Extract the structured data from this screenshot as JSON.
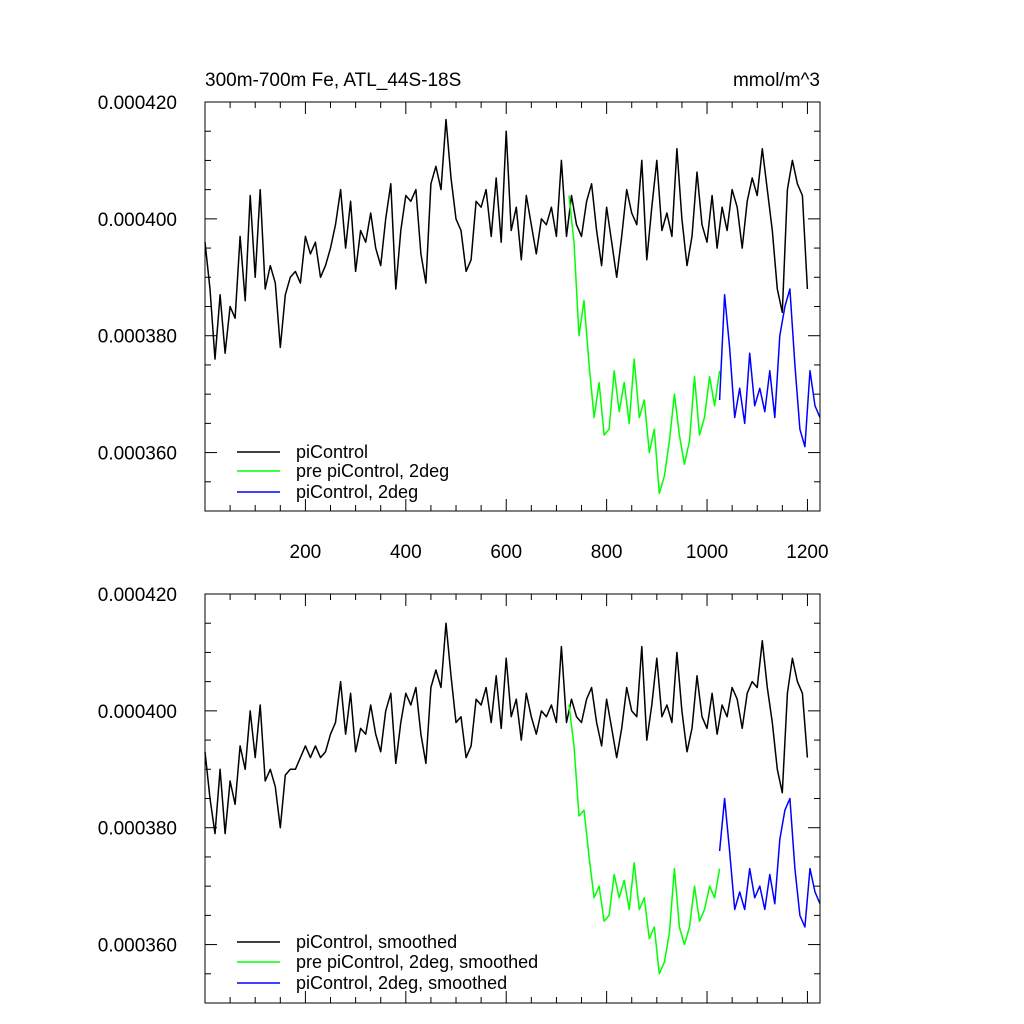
{
  "chart_data": [
    {
      "type": "line",
      "title": "300m-700m Fe, ATL_44S-18S",
      "units": "mmol/m^3",
      "xlabel": "",
      "ylabel": "",
      "xlim": [
        0,
        1225
      ],
      "ylim": [
        0.00035,
        0.00042
      ],
      "x_ticks": [
        200,
        400,
        600,
        800,
        1000,
        1200
      ],
      "x_tick_labels": [
        "200",
        "400",
        "600",
        "800",
        "1000",
        "1200"
      ],
      "y_ticks": [
        0.00036,
        0.00038,
        0.0004,
        0.00042
      ],
      "y_tick_labels": [
        "0.000360",
        "0.000380",
        "0.000400",
        "0.000420"
      ],
      "legend_position": "bottom-left",
      "series": [
        {
          "name": "piControl",
          "color": "#000000",
          "x": [
            0,
            10,
            20,
            30,
            40,
            50,
            60,
            70,
            80,
            90,
            100,
            110,
            120,
            130,
            140,
            150,
            160,
            170,
            180,
            190,
            200,
            210,
            220,
            230,
            240,
            250,
            260,
            270,
            280,
            290,
            300,
            310,
            320,
            330,
            340,
            350,
            360,
            370,
            380,
            390,
            400,
            410,
            420,
            430,
            440,
            450,
            460,
            470,
            480,
            490,
            500,
            510,
            520,
            530,
            540,
            550,
            560,
            570,
            580,
            590,
            600,
            610,
            620,
            630,
            640,
            650,
            660,
            670,
            680,
            690,
            700,
            710,
            720,
            730,
            740,
            750,
            760,
            770,
            780,
            790,
            800,
            810,
            820,
            830,
            840,
            850,
            860,
            870,
            880,
            890,
            900,
            910,
            920,
            930,
            940,
            950,
            960,
            970,
            980,
            990,
            1000,
            1010,
            1020,
            1030,
            1040,
            1050,
            1060,
            1070,
            1080,
            1090,
            1100,
            1110,
            1120,
            1130,
            1140,
            1150,
            1160,
            1170,
            1180,
            1190,
            1200
          ],
          "y": [
            0.000396,
            0.000388,
            0.000376,
            0.000387,
            0.000377,
            0.000385,
            0.000383,
            0.000397,
            0.000386,
            0.000404,
            0.00039,
            0.000405,
            0.000388,
            0.000392,
            0.000389,
            0.000378,
            0.000387,
            0.00039,
            0.000391,
            0.000389,
            0.000397,
            0.000394,
            0.000396,
            0.00039,
            0.000392,
            0.000395,
            0.000399,
            0.000405,
            0.000395,
            0.000403,
            0.000391,
            0.000398,
            0.000396,
            0.000401,
            0.000395,
            0.000392,
            0.0004,
            0.000406,
            0.000388,
            0.000398,
            0.000404,
            0.000403,
            0.000405,
            0.000394,
            0.000389,
            0.000406,
            0.000409,
            0.000405,
            0.000417,
            0.000407,
            0.0004,
            0.000398,
            0.000391,
            0.000393,
            0.000403,
            0.000402,
            0.000405,
            0.000397,
            0.000407,
            0.000396,
            0.000415,
            0.000398,
            0.000402,
            0.000393,
            0.000404,
            0.000399,
            0.000394,
            0.0004,
            0.000399,
            0.000402,
            0.000397,
            0.00041,
            0.000397,
            0.000404,
            0.000399,
            0.000397,
            0.000403,
            0.000406,
            0.000398,
            0.000392,
            0.000402,
            0.000396,
            0.00039,
            0.000397,
            0.000405,
            0.000401,
            0.000399,
            0.00041,
            0.000393,
            0.000402,
            0.00041,
            0.000398,
            0.000401,
            0.000397,
            0.000412,
            0.0004,
            0.000392,
            0.000397,
            0.000408,
            0.000399,
            0.000396,
            0.000404,
            0.000395,
            0.000402,
            0.000398,
            0.000405,
            0.000402,
            0.000395,
            0.000403,
            0.000407,
            0.000404,
            0.000412,
            0.000405,
            0.000398,
            0.000388,
            0.000384,
            0.000405,
            0.00041,
            0.000406,
            0.000404,
            0.000388
          ]
        },
        {
          "name": "pre piControl, 2deg",
          "color": "#00ff00",
          "x": [
            725,
            735,
            745,
            755,
            765,
            775,
            785,
            795,
            805,
            815,
            825,
            835,
            845,
            855,
            865,
            875,
            885,
            895,
            905,
            915,
            925,
            935,
            945,
            955,
            965,
            975,
            985,
            995,
            1005,
            1015,
            1025
          ],
          "y": [
            0.000404,
            0.000396,
            0.00038,
            0.000386,
            0.000375,
            0.000366,
            0.000372,
            0.000363,
            0.000364,
            0.000374,
            0.000367,
            0.000372,
            0.000365,
            0.000376,
            0.000366,
            0.000369,
            0.00036,
            0.000364,
            0.000353,
            0.000356,
            0.000362,
            0.00037,
            0.000363,
            0.000358,
            0.000362,
            0.000373,
            0.000363,
            0.000366,
            0.000373,
            0.000368,
            0.000374
          ]
        },
        {
          "name": "piControl, 2deg",
          "color": "#0000ff",
          "x": [
            1025,
            1035,
            1045,
            1055,
            1065,
            1075,
            1085,
            1095,
            1105,
            1115,
            1125,
            1135,
            1145,
            1155,
            1165,
            1175,
            1185,
            1195,
            1205,
            1215,
            1225
          ],
          "y": [
            0.000369,
            0.000387,
            0.000378,
            0.000366,
            0.000371,
            0.000365,
            0.000377,
            0.000368,
            0.000371,
            0.000367,
            0.000374,
            0.000366,
            0.00038,
            0.000385,
            0.000388,
            0.000375,
            0.000364,
            0.000361,
            0.000374,
            0.000368,
            0.000366
          ]
        }
      ]
    },
    {
      "type": "line",
      "title": "",
      "xlabel": "",
      "ylabel": "",
      "xlim": [
        0,
        1225
      ],
      "ylim": [
        0.00035,
        0.00042
      ],
      "x_ticks": [
        200,
        400,
        600,
        800,
        1000,
        1200
      ],
      "y_ticks": [
        0.00036,
        0.00038,
        0.0004,
        0.00042
      ],
      "y_tick_labels": [
        "0.000360",
        "0.000380",
        "0.000400",
        "0.000420"
      ],
      "legend_position": "bottom-left",
      "series": [
        {
          "name": "piControl, smoothed",
          "color": "#000000",
          "x": [
            0,
            10,
            20,
            30,
            40,
            50,
            60,
            70,
            80,
            90,
            100,
            110,
            120,
            130,
            140,
            150,
            160,
            170,
            180,
            190,
            200,
            210,
            220,
            230,
            240,
            250,
            260,
            270,
            280,
            290,
            300,
            310,
            320,
            330,
            340,
            350,
            360,
            370,
            380,
            390,
            400,
            410,
            420,
            430,
            440,
            450,
            460,
            470,
            480,
            490,
            500,
            510,
            520,
            530,
            540,
            550,
            560,
            570,
            580,
            590,
            600,
            610,
            620,
            630,
            640,
            650,
            660,
            670,
            680,
            690,
            700,
            710,
            720,
            730,
            740,
            750,
            760,
            770,
            780,
            790,
            800,
            810,
            820,
            830,
            840,
            850,
            860,
            870,
            880,
            890,
            900,
            910,
            920,
            930,
            940,
            950,
            960,
            970,
            980,
            990,
            1000,
            1010,
            1020,
            1030,
            1040,
            1050,
            1060,
            1070,
            1080,
            1090,
            1100,
            1110,
            1120,
            1130,
            1140,
            1150,
            1160,
            1170,
            1180,
            1190,
            1200
          ],
          "y": [
            0.000393,
            0.000385,
            0.000379,
            0.00039,
            0.000379,
            0.000388,
            0.000384,
            0.000394,
            0.00039,
            0.0004,
            0.000392,
            0.000401,
            0.000388,
            0.00039,
            0.000387,
            0.00038,
            0.000389,
            0.00039,
            0.00039,
            0.000392,
            0.000394,
            0.000392,
            0.000394,
            0.000392,
            0.000393,
            0.000396,
            0.000398,
            0.000405,
            0.000396,
            0.000403,
            0.000393,
            0.000397,
            0.000396,
            0.000401,
            0.000396,
            0.000393,
            0.0004,
            0.000403,
            0.000391,
            0.000398,
            0.000403,
            0.000401,
            0.000404,
            0.000396,
            0.000391,
            0.000404,
            0.000407,
            0.000404,
            0.000415,
            0.000406,
            0.000398,
            0.000399,
            0.000392,
            0.000394,
            0.000402,
            0.000401,
            0.000404,
            0.000398,
            0.000406,
            0.000397,
            0.000409,
            0.000399,
            0.000402,
            0.000395,
            0.000403,
            0.000399,
            0.000396,
            0.0004,
            0.000399,
            0.000401,
            0.000398,
            0.000411,
            0.000398,
            0.000402,
            0.000399,
            0.000398,
            0.000402,
            0.000404,
            0.000398,
            0.000394,
            0.000402,
            0.000397,
            0.000392,
            0.000397,
            0.000404,
            0.0004,
            0.000399,
            0.000411,
            0.000395,
            0.000401,
            0.000409,
            0.000399,
            0.000401,
            0.000398,
            0.00041,
            0.0004,
            0.000393,
            0.000397,
            0.000406,
            0.000399,
            0.000397,
            0.000403,
            0.000396,
            0.000401,
            0.000399,
            0.000404,
            0.000402,
            0.000397,
            0.000403,
            0.000405,
            0.000404,
            0.000412,
            0.000404,
            0.000398,
            0.00039,
            0.000386,
            0.000403,
            0.000409,
            0.000405,
            0.000403,
            0.000392
          ]
        },
        {
          "name": "pre piControl, 2deg, smoothed",
          "color": "#00ff00",
          "x": [
            725,
            735,
            745,
            755,
            765,
            775,
            785,
            795,
            805,
            815,
            825,
            835,
            845,
            855,
            865,
            875,
            885,
            895,
            905,
            915,
            925,
            935,
            945,
            955,
            965,
            975,
            985,
            995,
            1005,
            1015,
            1025
          ],
          "y": [
            0.000401,
            0.000394,
            0.000382,
            0.000383,
            0.000375,
            0.000368,
            0.00037,
            0.000364,
            0.000365,
            0.000372,
            0.000368,
            0.000371,
            0.000366,
            0.000374,
            0.000366,
            0.000368,
            0.000361,
            0.000363,
            0.000355,
            0.000357,
            0.000362,
            0.000373,
            0.000363,
            0.00036,
            0.000363,
            0.00037,
            0.000364,
            0.000366,
            0.00037,
            0.000368,
            0.000373
          ]
        },
        {
          "name": "piControl, 2deg, smoothed",
          "color": "#0000ff",
          "x": [
            1025,
            1035,
            1045,
            1055,
            1065,
            1075,
            1085,
            1095,
            1105,
            1115,
            1125,
            1135,
            1145,
            1155,
            1165,
            1175,
            1185,
            1195,
            1205,
            1215,
            1225
          ],
          "y": [
            0.000376,
            0.000385,
            0.000376,
            0.000366,
            0.000369,
            0.000366,
            0.000373,
            0.000368,
            0.00037,
            0.000366,
            0.000372,
            0.000367,
            0.000378,
            0.000383,
            0.000385,
            0.000373,
            0.000365,
            0.000363,
            0.000373,
            0.000369,
            0.000367
          ]
        }
      ]
    }
  ]
}
